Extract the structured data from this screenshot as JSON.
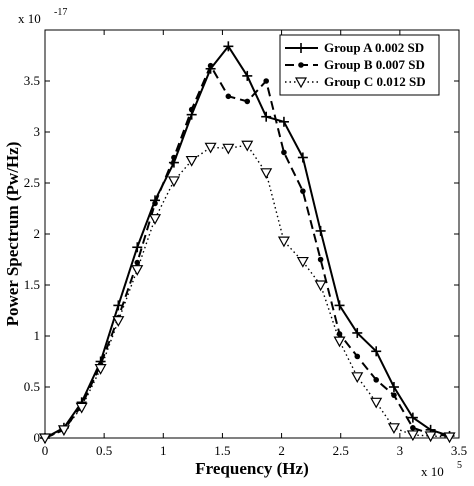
{
  "chart_data": {
    "type": "line",
    "xlabel": "Frequency (Hz)",
    "ylabel": "Power Spectrum (Pw/Hz)",
    "x_multiplier": "x 10",
    "x_multiplier_exp": "5",
    "y_multiplier": "x 10",
    "y_multiplier_exp": "-17",
    "xlim": [
      0,
      3.5
    ],
    "ylim": [
      0,
      4.0
    ],
    "x_ticks": [
      0,
      0.5,
      1,
      1.5,
      2,
      2.5,
      3,
      3.5
    ],
    "x_tick_labels": [
      "0",
      "0.5",
      "1",
      "1.5",
      "2",
      "2.5",
      "3",
      "3.5"
    ],
    "y_ticks": [
      0,
      0.5,
      1,
      1.5,
      2,
      2.5,
      3,
      3.5
    ],
    "y_tick_labels": [
      "0",
      "0.5",
      "1",
      "1.5",
      "2",
      "2.5",
      "3",
      "3.5"
    ],
    "grid": false,
    "legend": "top-right",
    "series": [
      {
        "name": "Group A 0.002 SD",
        "marker": "plus",
        "dash": "solid",
        "x": [
          0,
          0.16,
          0.31,
          0.47,
          0.62,
          0.78,
          0.93,
          1.09,
          1.24,
          1.4,
          1.55,
          1.71,
          1.87,
          2.02,
          2.18,
          2.33,
          2.49,
          2.64,
          2.8,
          2.95,
          3.11,
          3.26,
          3.42
        ],
        "y": [
          0,
          0.1,
          0.35,
          0.75,
          1.3,
          1.87,
          2.33,
          2.7,
          3.17,
          3.62,
          3.84,
          3.55,
          3.15,
          3.1,
          2.75,
          2.03,
          1.3,
          1.03,
          0.85,
          0.5,
          0.2,
          0.08,
          0.02
        ]
      },
      {
        "name": "Group B 0.007 SD",
        "marker": "dot",
        "dash": "dashed",
        "x": [
          0,
          0.16,
          0.31,
          0.47,
          0.62,
          0.78,
          0.93,
          1.09,
          1.24,
          1.4,
          1.55,
          1.71,
          1.87,
          2.02,
          2.18,
          2.33,
          2.49,
          2.64,
          2.8,
          2.95,
          3.11,
          3.26,
          3.42
        ],
        "y": [
          0,
          0.08,
          0.32,
          0.72,
          1.18,
          1.72,
          2.3,
          2.75,
          3.22,
          3.65,
          3.35,
          3.3,
          3.5,
          2.8,
          2.42,
          1.75,
          1.02,
          0.8,
          0.57,
          0.42,
          0.1,
          0.04,
          0.02
        ]
      },
      {
        "name": "Group C 0.012 SD",
        "marker": "triangle-down",
        "dash": "dotted",
        "x": [
          0,
          0.16,
          0.31,
          0.47,
          0.62,
          0.78,
          0.93,
          1.09,
          1.24,
          1.4,
          1.55,
          1.71,
          1.87,
          2.02,
          2.18,
          2.33,
          2.49,
          2.64,
          2.8,
          2.95,
          3.11,
          3.26,
          3.42
        ],
        "y": [
          0,
          0.08,
          0.3,
          0.68,
          1.15,
          1.65,
          2.15,
          2.52,
          2.72,
          2.85,
          2.84,
          2.87,
          2.6,
          1.93,
          1.73,
          1.5,
          0.95,
          0.6,
          0.35,
          0.1,
          0.03,
          0.02,
          0.01
        ]
      }
    ]
  }
}
